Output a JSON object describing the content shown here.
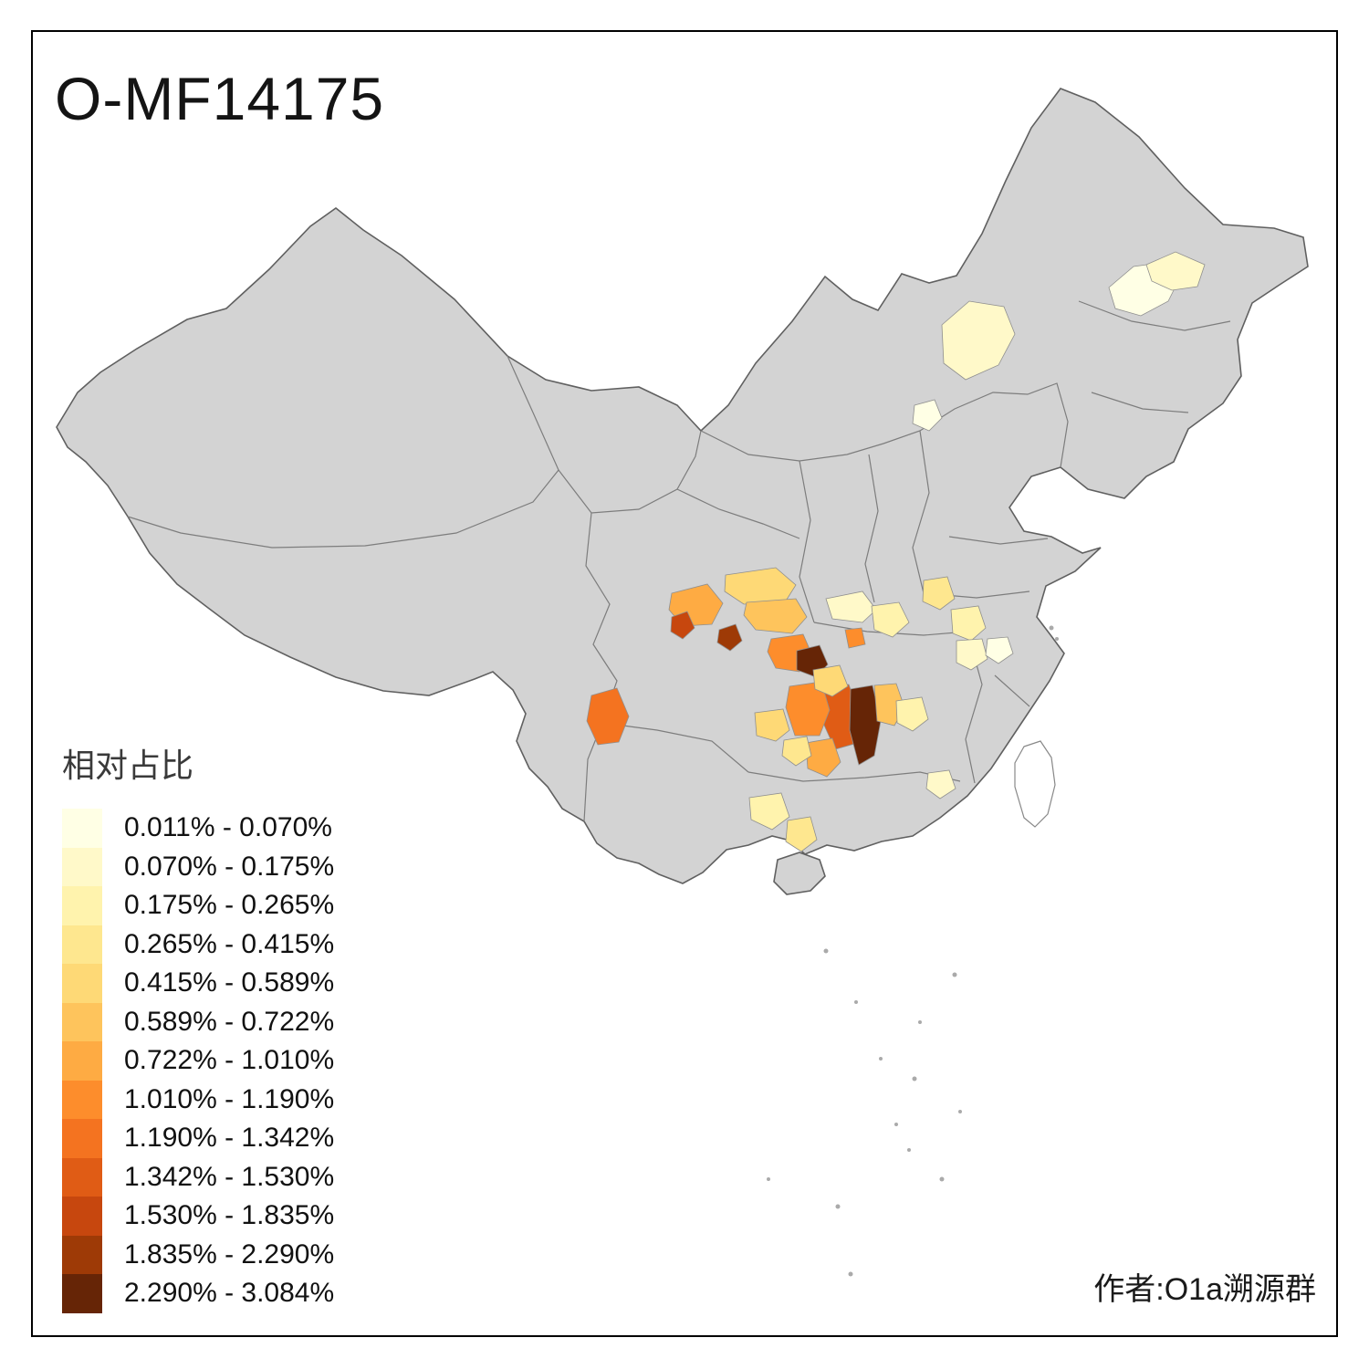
{
  "page": {
    "title": "O-MF14175",
    "author_credit": "作者:O1a溯源群"
  },
  "map": {
    "base_fill": "#D3D3D3"
  },
  "legend": {
    "title": "相对占比",
    "bins": [
      {
        "range": "0.011% - 0.070%",
        "color": "#FFFFE5"
      },
      {
        "range": "0.070% - 0.175%",
        "color": "#FFF9C9"
      },
      {
        "range": "0.175% - 0.265%",
        "color": "#FFF3AD"
      },
      {
        "range": "0.265% - 0.415%",
        "color": "#FEE78F"
      },
      {
        "range": "0.415% - 0.589%",
        "color": "#FED976"
      },
      {
        "range": "0.589% - 0.722%",
        "color": "#FEC45C"
      },
      {
        "range": "0.722% - 1.010%",
        "color": "#FEAB43"
      },
      {
        "range": "1.010% - 1.190%",
        "color": "#FD8D2C"
      },
      {
        "range": "1.190% - 1.342%",
        "color": "#F47320"
      },
      {
        "range": "1.342% - 1.530%",
        "color": "#E05C15"
      },
      {
        "range": "1.530% - 1.835%",
        "color": "#C7470E"
      },
      {
        "range": "1.835% - 2.290%",
        "color": "#9E3A06"
      },
      {
        "range": "2.290% - 3.084%",
        "color": "#662506"
      }
    ]
  }
}
